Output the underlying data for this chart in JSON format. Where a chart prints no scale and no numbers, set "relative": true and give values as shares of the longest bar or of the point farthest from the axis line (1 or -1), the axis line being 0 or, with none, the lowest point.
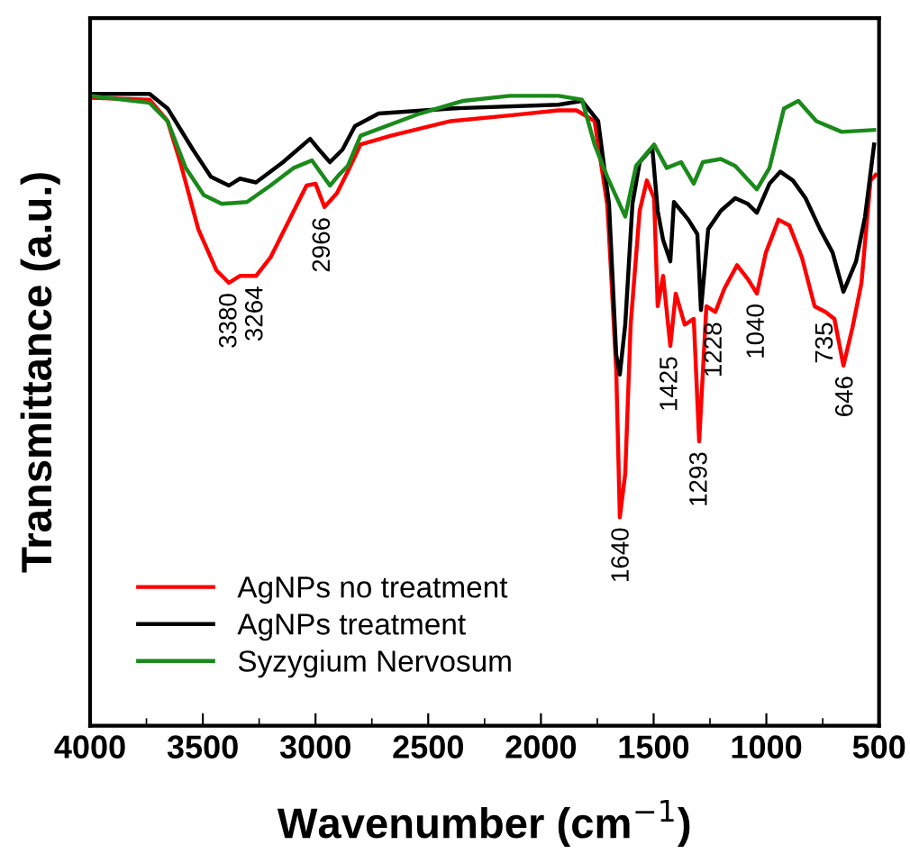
{
  "chart_data": {
    "type": "line",
    "relative": true,
    "xlabel": "Wavenumber (cm$^{−1}$)",
    "ylabel": "Transmittance (a.u.)",
    "xlim": [
      4000,
      500
    ],
    "xticks": [
      4000,
      3500,
      3000,
      2500,
      2000,
      1500,
      1000,
      500
    ],
    "legend": "bottom left",
    "grid": false,
    "line_style": "solid",
    "marker": "none",
    "tick_labels": "x",
    "series": [
      {
        "name": "AgNPs no treatment",
        "color": "#ff0000",
        "x": [
          4000,
          3736,
          3656,
          3600,
          3520,
          3440,
          3384,
          3336,
          3264,
          3200,
          3120,
          3040,
          3000,
          2960,
          2905,
          2857,
          2800,
          2665,
          2400,
          2138,
          1922,
          1842,
          1762,
          1706,
          1698,
          1666,
          1650,
          1626,
          1602,
          1562,
          1530,
          1498,
          1482,
          1458,
          1426,
          1402,
          1362,
          1322,
          1298,
          1266,
          1226,
          1186,
          1130,
          1082,
          1042,
          1002,
          946,
          898,
          842,
          786,
          738,
          698,
          658,
          618,
          578,
          538,
          515
        ],
        "values": [
          0.994,
          0.991,
          0.957,
          0.892,
          0.786,
          0.721,
          0.701,
          0.712,
          0.712,
          0.741,
          0.798,
          0.855,
          0.858,
          0.821,
          0.843,
          0.877,
          0.92,
          0.934,
          0.957,
          0.966,
          0.974,
          0.974,
          0.957,
          0.826,
          0.778,
          0.564,
          0.33,
          0.399,
          0.635,
          0.815,
          0.863,
          0.835,
          0.664,
          0.712,
          0.601,
          0.684,
          0.635,
          0.644,
          0.45,
          0.664,
          0.655,
          0.692,
          0.729,
          0.707,
          0.684,
          0.749,
          0.801,
          0.792,
          0.741,
          0.664,
          0.655,
          0.644,
          0.57,
          0.63,
          0.701,
          0.863,
          0.872
        ]
      },
      {
        "name": "AgNPs treatment",
        "color": "#000000",
        "x": [
          4000,
          3736,
          3656,
          3544,
          3464,
          3384,
          3336,
          3264,
          3144,
          3024,
          2985,
          2936,
          2880,
          2825,
          2720,
          2400,
          1922,
          1818,
          1746,
          1698,
          1666,
          1650,
          1626,
          1594,
          1562,
          1506,
          1482,
          1458,
          1426,
          1410,
          1346,
          1306,
          1290,
          1258,
          1202,
          1138,
          1082,
          1042,
          986,
          938,
          882,
          826,
          762,
          706,
          658,
          602,
          562,
          522
        ],
        "values": [
          1.0,
          1.0,
          0.977,
          0.912,
          0.869,
          0.855,
          0.866,
          0.86,
          0.892,
          0.929,
          0.912,
          0.892,
          0.912,
          0.949,
          0.969,
          0.977,
          0.983,
          0.989,
          0.957,
          0.826,
          0.587,
          0.556,
          0.635,
          0.826,
          0.892,
          0.915,
          0.815,
          0.769,
          0.735,
          0.829,
          0.801,
          0.778,
          0.658,
          0.786,
          0.815,
          0.835,
          0.826,
          0.812,
          0.858,
          0.877,
          0.863,
          0.835,
          0.786,
          0.749,
          0.687,
          0.735,
          0.806,
          0.92
        ]
      },
      {
        "name": "Syzygium Nervosum",
        "color": "#1a8a1a",
        "x": [
          4000,
          3736,
          3656,
          3576,
          3496,
          3416,
          3304,
          3200,
          3096,
          3016,
          2936,
          2896,
          2857,
          2800,
          2537,
          2345,
          2138,
          1922,
          1818,
          1762,
          1706,
          1626,
          1578,
          1498,
          1442,
          1378,
          1322,
          1282,
          1202,
          1138,
          1042,
          986,
          922,
          858,
          778,
          666,
          522
        ],
        "values": [
          0.997,
          0.986,
          0.957,
          0.883,
          0.84,
          0.826,
          0.829,
          0.855,
          0.883,
          0.895,
          0.855,
          0.872,
          0.886,
          0.934,
          0.969,
          0.989,
          0.997,
          0.997,
          0.991,
          0.92,
          0.869,
          0.806,
          0.886,
          0.92,
          0.883,
          0.892,
          0.858,
          0.892,
          0.897,
          0.886,
          0.849,
          0.883,
          0.977,
          0.989,
          0.957,
          0.94,
          0.943
        ]
      }
    ],
    "annotations": [
      {
        "text": "3380",
        "x": 3380,
        "y": 0.701
      },
      {
        "text": "3264",
        "x": 3264,
        "y": 0.712
      },
      {
        "text": "2966",
        "x": 2966,
        "y": 0.821
      },
      {
        "text": "1640",
        "x": 1640,
        "y": 0.33
      },
      {
        "text": "1425",
        "x": 1425,
        "y": 0.601
      },
      {
        "text": "1293",
        "x": 1293,
        "y": 0.45
      },
      {
        "text": "1228",
        "x": 1228,
        "y": 0.655
      },
      {
        "text": "1040",
        "x": 1040,
        "y": 0.684
      },
      {
        "text": "735",
        "x": 735,
        "y": 0.655
      },
      {
        "text": "646",
        "x": 646,
        "y": 0.57
      }
    ]
  }
}
